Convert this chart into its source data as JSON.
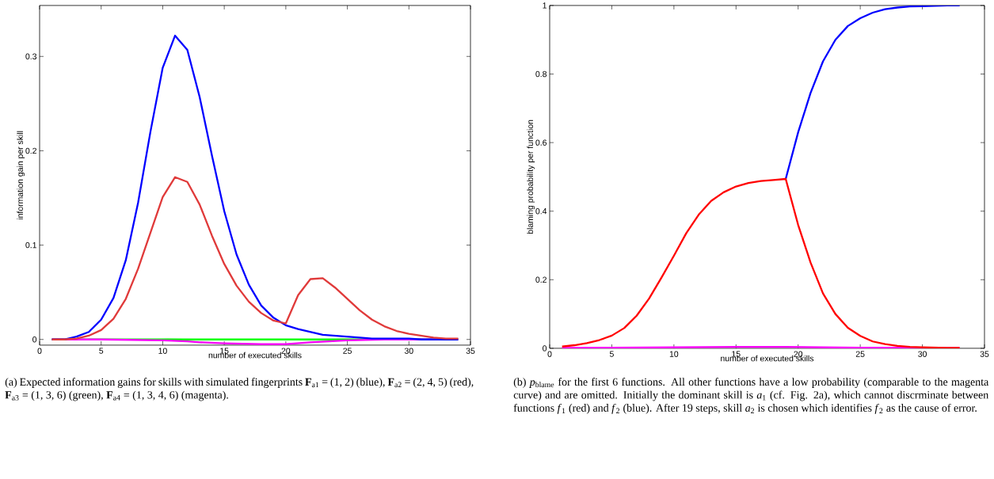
{
  "chart_data": [
    {
      "type": "line",
      "xlabel": "number of executed skills",
      "ylabel": "information gain per skill",
      "xlim": [
        0,
        35
      ],
      "ylim": [
        -0.006,
        0.354
      ],
      "xticks": [
        0,
        5,
        10,
        15,
        20,
        25,
        30,
        35
      ],
      "yticks": [
        0,
        0.1,
        0.2,
        0.3
      ],
      "series": [
        {
          "color": "#00ff00",
          "x": [
            1,
            5,
            10,
            15,
            20,
            25,
            30,
            34
          ],
          "values": [
            0,
            0,
            0,
            0,
            0,
            0,
            0,
            0
          ]
        },
        {
          "color": "#ff00ff",
          "x": [
            1,
            5,
            10,
            12,
            13,
            15,
            18,
            20,
            22,
            25,
            28,
            34
          ],
          "values": [
            0,
            0,
            -0.001,
            -0.002,
            -0.003,
            -0.004,
            -0.005,
            -0.005,
            -0.003,
            -0.001,
            0,
            0
          ]
        },
        {
          "color": "#0000ff",
          "x": [
            1,
            2,
            3,
            4,
            5,
            6,
            7,
            8,
            9,
            10,
            11,
            12,
            13,
            14,
            15,
            16,
            17,
            18,
            19,
            20,
            21,
            22,
            23,
            24,
            25,
            26,
            27,
            28,
            29,
            30,
            31,
            32,
            33,
            34
          ],
          "values": [
            0,
            0,
            0.003,
            0.008,
            0.021,
            0.044,
            0.084,
            0.145,
            0.22,
            0.288,
            0.322,
            0.307,
            0.257,
            0.195,
            0.136,
            0.09,
            0.058,
            0.036,
            0.023,
            0.015,
            0.011,
            0.008,
            0.005,
            0.004,
            0.003,
            0.002,
            0.001,
            0.001,
            0.001,
            0.001,
            0,
            0,
            0,
            0
          ]
        },
        {
          "color": "#e03a3a",
          "x": [
            1,
            2,
            3,
            4,
            5,
            6,
            7,
            8,
            9,
            10,
            11,
            12,
            13,
            14,
            15,
            16,
            17,
            18,
            19,
            20,
            21,
            22,
            23,
            24,
            25,
            26,
            27,
            28,
            29,
            30,
            31,
            32,
            33,
            34
          ],
          "values": [
            0,
            0,
            0.001,
            0.004,
            0.01,
            0.022,
            0.043,
            0.075,
            0.113,
            0.151,
            0.172,
            0.167,
            0.143,
            0.11,
            0.08,
            0.057,
            0.04,
            0.028,
            0.02,
            0.017,
            0.047,
            0.064,
            0.065,
            0.055,
            0.043,
            0.031,
            0.021,
            0.014,
            0.009,
            0.006,
            0.004,
            0.002,
            0.001,
            0.001
          ]
        }
      ],
      "annotations": [
        "(a) Expected information gains for skills with simulated fingerprints **F**$_{a1}$ = (1, 2) (blue), **F**$_{a2}$ = (2, 4, 5) (red), **F**$_{a3}$ = (1, 3, 6) (green), **F**$_{a4}$ = (1, 3, 4, 6) (magenta)."
      ]
    },
    {
      "type": "line",
      "xlabel": "number of executed skills",
      "ylabel": "blaming probability per function",
      "xlim": [
        0,
        35
      ],
      "ylim": [
        0,
        1
      ],
      "xticks": [
        0,
        5,
        10,
        15,
        20,
        25,
        30,
        35
      ],
      "yticks": [
        0,
        0.2,
        0.4,
        0.6,
        0.8,
        1
      ],
      "series": [
        {
          "color": "#ff00ff",
          "x": [
            1,
            5,
            10,
            15,
            19,
            25,
            33
          ],
          "values": [
            0.001,
            0.002,
            0.003,
            0.004,
            0.004,
            0.002,
            0.001
          ]
        },
        {
          "color": "#0000ff",
          "x": [
            19,
            20,
            21,
            22,
            23,
            24,
            25,
            26,
            27,
            28,
            29,
            30,
            31,
            32,
            33
          ],
          "values": [
            0.494,
            0.63,
            0.745,
            0.837,
            0.9,
            0.94,
            0.963,
            0.979,
            0.989,
            0.994,
            0.997,
            0.998,
            0.999,
            1,
            1
          ]
        },
        {
          "color": "#ff0000",
          "x": [
            1,
            2,
            3,
            4,
            5,
            6,
            7,
            8,
            9,
            10,
            11,
            12,
            13,
            14,
            15,
            16,
            17,
            18,
            19,
            20,
            21,
            22,
            23,
            24,
            25,
            26,
            27,
            28,
            29,
            30,
            31,
            32,
            33
          ],
          "values": [
            0.005,
            0.009,
            0.015,
            0.024,
            0.037,
            0.059,
            0.095,
            0.145,
            0.206,
            0.27,
            0.336,
            0.39,
            0.43,
            0.455,
            0.472,
            0.482,
            0.488,
            0.491,
            0.494,
            0.36,
            0.25,
            0.16,
            0.1,
            0.06,
            0.036,
            0.02,
            0.012,
            0.007,
            0.004,
            0.003,
            0.002,
            0.001,
            0.001
          ]
        }
      ],
      "annotations": [
        "(b) *p*$_{blame}$ for the first 6 functions. All other functions have a low probability (comparable to the magenta curve) and are omitted. Initially the dominant skill is *a*$_{1}$ (cf. Fig. 2a), which cannot discrminate between functions *f*$_{1}$ (red) and *f*$_{2}$ (blue). After 19 steps, skill *a*$_{2}$ is chosen which identifies *f*$_{2}$ as the cause of error."
      ]
    }
  ]
}
